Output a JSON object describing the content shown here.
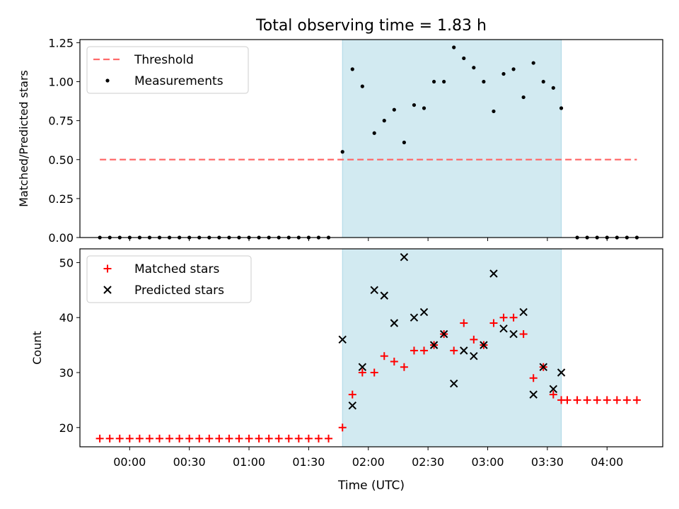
{
  "chart_data": {
    "type": "scatter",
    "title": "Total observing time = 1.83 h",
    "xlabel": "Time (UTC)",
    "x_ticks": [
      "00:00",
      "00:30",
      "01:00",
      "01:30",
      "02:00",
      "02:30",
      "03:00",
      "03:30",
      "04:00"
    ],
    "xlim": [
      "23:35",
      "04:28"
    ],
    "shaded_interval": [
      "01:47",
      "03:37"
    ],
    "colors": {
      "shade": "#add8e6",
      "threshold": "#ff6b6b",
      "measurements": "#000000",
      "matched": "#ff0000",
      "predicted": "#000000"
    },
    "panels": [
      {
        "ylabel": "Matched/Predicted stars",
        "ylim": [
          0,
          1.27
        ],
        "y_ticks": [
          "0.00",
          "0.25",
          "0.50",
          "0.75",
          "1.00",
          "1.25"
        ],
        "legend": [
          {
            "label": "Threshold",
            "marker": "dashed-line"
          },
          {
            "label": "Measurements",
            "marker": "dot"
          }
        ],
        "threshold": {
          "value": 0.5,
          "x_range": [
            "23:45",
            "04:15"
          ]
        },
        "series": [
          {
            "name": "Measurements",
            "marker": "dot",
            "points": [
              [
                "23:45",
                0
              ],
              [
                "23:50",
                0
              ],
              [
                "23:55",
                0
              ],
              [
                "00:00",
                0
              ],
              [
                "00:05",
                0
              ],
              [
                "00:10",
                0
              ],
              [
                "00:15",
                0
              ],
              [
                "00:20",
                0
              ],
              [
                "00:25",
                0
              ],
              [
                "00:30",
                0
              ],
              [
                "00:35",
                0
              ],
              [
                "00:40",
                0
              ],
              [
                "00:45",
                0
              ],
              [
                "00:50",
                0
              ],
              [
                "00:55",
                0
              ],
              [
                "01:00",
                0
              ],
              [
                "01:05",
                0
              ],
              [
                "01:10",
                0
              ],
              [
                "01:15",
                0
              ],
              [
                "01:20",
                0
              ],
              [
                "01:25",
                0
              ],
              [
                "01:30",
                0
              ],
              [
                "01:35",
                0
              ],
              [
                "01:40",
                0
              ],
              [
                "01:47",
                0.55
              ],
              [
                "01:52",
                1.08
              ],
              [
                "01:57",
                0.97
              ],
              [
                "02:03",
                0.67
              ],
              [
                "02:08",
                0.75
              ],
              [
                "02:13",
                0.82
              ],
              [
                "02:18",
                0.61
              ],
              [
                "02:23",
                0.85
              ],
              [
                "02:28",
                0.83
              ],
              [
                "02:33",
                1.0
              ],
              [
                "02:38",
                1.0
              ],
              [
                "02:43",
                1.22
              ],
              [
                "02:48",
                1.15
              ],
              [
                "02:53",
                1.09
              ],
              [
                "02:58",
                1.0
              ],
              [
                "03:03",
                0.81
              ],
              [
                "03:08",
                1.05
              ],
              [
                "03:13",
                1.08
              ],
              [
                "03:18",
                0.9
              ],
              [
                "03:23",
                1.12
              ],
              [
                "03:28",
                1.0
              ],
              [
                "03:33",
                0.96
              ],
              [
                "03:37",
                0.83
              ],
              [
                "03:45",
                0
              ],
              [
                "03:50",
                0
              ],
              [
                "03:55",
                0
              ],
              [
                "04:00",
                0
              ],
              [
                "04:05",
                0
              ],
              [
                "04:10",
                0
              ],
              [
                "04:15",
                0
              ]
            ]
          }
        ]
      },
      {
        "ylabel": "Count",
        "ylim": [
          16.5,
          52.5
        ],
        "y_ticks": [
          "20",
          "30",
          "40",
          "50"
        ],
        "legend": [
          {
            "label": "Matched stars",
            "marker": "plus"
          },
          {
            "label": "Predicted stars",
            "marker": "x"
          }
        ],
        "series": [
          {
            "name": "Matched stars",
            "marker": "plus",
            "points": [
              [
                "23:45",
                18
              ],
              [
                "23:50",
                18
              ],
              [
                "23:55",
                18
              ],
              [
                "00:00",
                18
              ],
              [
                "00:05",
                18
              ],
              [
                "00:10",
                18
              ],
              [
                "00:15",
                18
              ],
              [
                "00:20",
                18
              ],
              [
                "00:25",
                18
              ],
              [
                "00:30",
                18
              ],
              [
                "00:35",
                18
              ],
              [
                "00:40",
                18
              ],
              [
                "00:45",
                18
              ],
              [
                "00:50",
                18
              ],
              [
                "00:55",
                18
              ],
              [
                "01:00",
                18
              ],
              [
                "01:05",
                18
              ],
              [
                "01:10",
                18
              ],
              [
                "01:15",
                18
              ],
              [
                "01:20",
                18
              ],
              [
                "01:25",
                18
              ],
              [
                "01:30",
                18
              ],
              [
                "01:35",
                18
              ],
              [
                "01:40",
                18
              ],
              [
                "01:47",
                20
              ],
              [
                "01:52",
                26
              ],
              [
                "01:57",
                30
              ],
              [
                "02:03",
                30
              ],
              [
                "02:08",
                33
              ],
              [
                "02:13",
                32
              ],
              [
                "02:18",
                31
              ],
              [
                "02:23",
                34
              ],
              [
                "02:28",
                34
              ],
              [
                "02:33",
                35
              ],
              [
                "02:38",
                37
              ],
              [
                "02:43",
                34
              ],
              [
                "02:48",
                39
              ],
              [
                "02:53",
                36
              ],
              [
                "02:58",
                35
              ],
              [
                "03:03",
                39
              ],
              [
                "03:08",
                40
              ],
              [
                "03:13",
                40
              ],
              [
                "03:18",
                37
              ],
              [
                "03:23",
                29
              ],
              [
                "03:28",
                31
              ],
              [
                "03:33",
                26
              ],
              [
                "03:37",
                25
              ],
              [
                "03:40",
                25
              ],
              [
                "03:45",
                25
              ],
              [
                "03:50",
                25
              ],
              [
                "03:55",
                25
              ],
              [
                "04:00",
                25
              ],
              [
                "04:05",
                25
              ],
              [
                "04:10",
                25
              ],
              [
                "04:15",
                25
              ]
            ]
          },
          {
            "name": "Predicted stars",
            "marker": "x",
            "points": [
              [
                "01:47",
                36
              ],
              [
                "01:52",
                24
              ],
              [
                "01:57",
                31
              ],
              [
                "02:03",
                45
              ],
              [
                "02:08",
                44
              ],
              [
                "02:13",
                39
              ],
              [
                "02:18",
                51
              ],
              [
                "02:23",
                40
              ],
              [
                "02:28",
                41
              ],
              [
                "02:33",
                35
              ],
              [
                "02:38",
                37
              ],
              [
                "02:43",
                28
              ],
              [
                "02:48",
                34
              ],
              [
                "02:53",
                33
              ],
              [
                "02:58",
                35
              ],
              [
                "03:03",
                48
              ],
              [
                "03:08",
                38
              ],
              [
                "03:13",
                37
              ],
              [
                "03:18",
                41
              ],
              [
                "03:23",
                26
              ],
              [
                "03:28",
                31
              ],
              [
                "03:33",
                27
              ],
              [
                "03:37",
                30
              ]
            ]
          }
        ]
      }
    ]
  }
}
